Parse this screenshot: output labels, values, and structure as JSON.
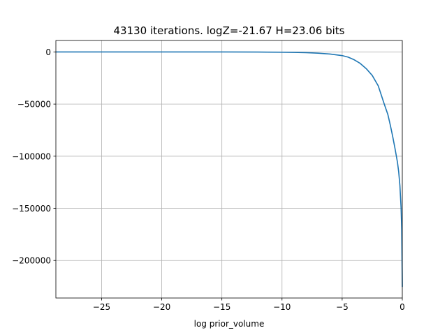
{
  "chart_data": {
    "type": "line",
    "title": "43130 iterations. logZ=-21.67 H=23.06 bits",
    "xlabel": "log prior_volume",
    "ylabel": "",
    "xlim": [
      -28.8,
      0
    ],
    "ylim": [
      -236000,
      11000
    ],
    "grid": true,
    "x_ticks": [
      -25,
      -20,
      -15,
      -10,
      -5,
      0
    ],
    "x_tick_labels": [
      "−25",
      "−20",
      "−15",
      "−10",
      "−5",
      "0"
    ],
    "y_ticks": [
      0,
      -50000,
      -100000,
      -150000,
      -200000
    ],
    "y_tick_labels": [
      "0",
      "−50000",
      "−100000",
      "−150000",
      "−200000"
    ],
    "series": [
      {
        "color": "#1f77b4",
        "x": [
          -28.8,
          -25,
          -20,
          -15,
          -12,
          -10,
          -9,
          -8,
          -7,
          -6,
          -5,
          -4.5,
          -4,
          -3.5,
          -3,
          -2.5,
          -2,
          -1.5,
          -1.2,
          -1,
          -0.8,
          -0.6,
          -0.4,
          -0.3,
          -0.2,
          -0.1,
          -0.05,
          0
        ],
        "y": [
          0,
          0,
          0,
          0,
          -100,
          -250,
          -400,
          -700,
          -1200,
          -2000,
          -3500,
          -5000,
          -7500,
          -11000,
          -16000,
          -22500,
          -32500,
          -50000,
          -60000,
          -70000,
          -81000,
          -93000,
          -106000,
          -115000,
          -128000,
          -150000,
          -170000,
          -225000
        ]
      }
    ]
  }
}
